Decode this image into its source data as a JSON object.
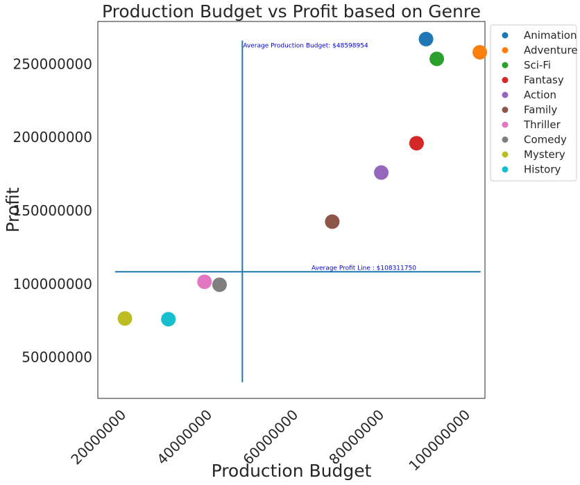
{
  "chart_data": {
    "type": "scatter",
    "title": "Production Budget vs Profit based on Genre",
    "xlabel": "Production Budget",
    "ylabel": "Profit",
    "xlim": [
      15000000,
      105000000
    ],
    "ylim": [
      22000000,
      279000000
    ],
    "xticks": [
      20000000,
      40000000,
      60000000,
      80000000,
      100000000
    ],
    "xtick_labels": [
      "20000000",
      "40000000",
      "60000000",
      "80000000",
      "100000000"
    ],
    "yticks": [
      50000000,
      100000000,
      150000000,
      200000000,
      250000000
    ],
    "ytick_labels": [
      "50000000",
      "100000000",
      "150000000",
      "200000000",
      "250000000"
    ],
    "grid": false,
    "legend": "outside-top-right",
    "series": [
      {
        "name": "Animation",
        "color": "#1f77b4",
        "x": [
          91300000
        ],
        "y": [
          267000000
        ]
      },
      {
        "name": "Adventure",
        "color": "#ff7f0e",
        "x": [
          103800000
        ],
        "y": [
          258000000
        ]
      },
      {
        "name": "Sci-Fi",
        "color": "#2ca02c",
        "x": [
          93800000
        ],
        "y": [
          253500000
        ]
      },
      {
        "name": "Fantasy",
        "color": "#d62728",
        "x": [
          89100000
        ],
        "y": [
          196000000
        ]
      },
      {
        "name": "Action",
        "color": "#9467bd",
        "x": [
          80900000
        ],
        "y": [
          176000000
        ]
      },
      {
        "name": "Family",
        "color": "#8c564b",
        "x": [
          69500000
        ],
        "y": [
          142500000
        ]
      },
      {
        "name": "Thriller",
        "color": "#e377c2",
        "x": [
          39800000
        ],
        "y": [
          101500000
        ]
      },
      {
        "name": "Comedy",
        "color": "#7f7f7f",
        "x": [
          43300000
        ],
        "y": [
          99500000
        ]
      },
      {
        "name": "Mystery",
        "color": "#bcbd22",
        "x": [
          21300000
        ],
        "y": [
          76500000
        ]
      },
      {
        "name": "History",
        "color": "#17becf",
        "x": [
          31400000
        ],
        "y": [
          76000000
        ]
      }
    ],
    "reference_lines": [
      {
        "orientation": "vertical",
        "value": 48598954,
        "from": 33000000,
        "to": 266000000,
        "color": "#1f77b4",
        "label": "Average Production Budget: $48598954"
      },
      {
        "orientation": "horizontal",
        "value": 108311750,
        "from": 19000000,
        "to": 104000000,
        "color": "#1f77b4",
        "label": "Average Profit Line : $108311750"
      }
    ]
  }
}
